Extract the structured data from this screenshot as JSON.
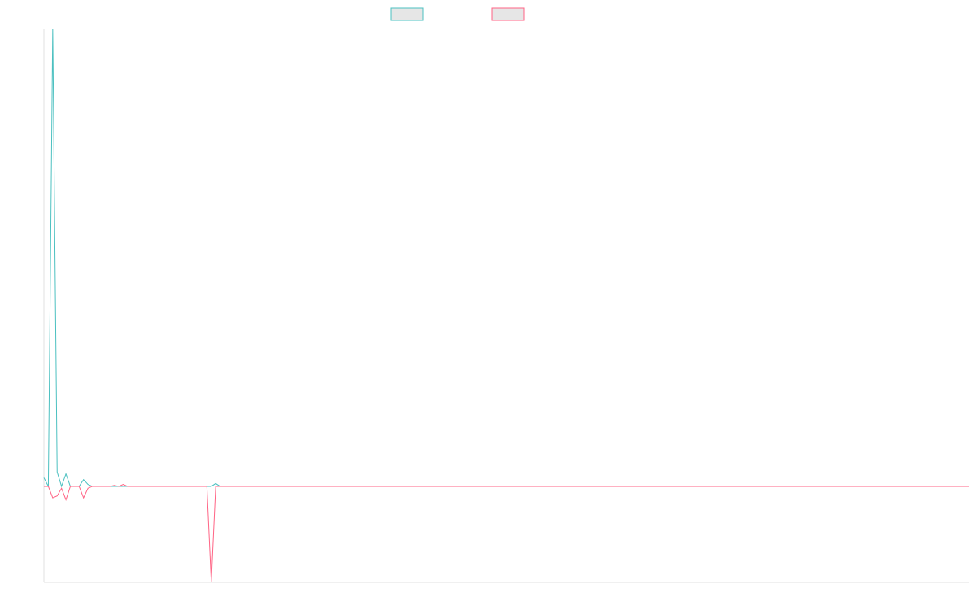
{
  "chart_data": {
    "type": "line",
    "x": [
      0,
      1,
      2,
      3,
      4,
      5,
      6,
      7,
      8,
      9,
      10,
      11,
      15,
      16,
      17,
      18,
      19,
      37,
      38,
      39,
      40,
      210
    ],
    "xlim": [
      0,
      210
    ],
    "ylim": [
      -1,
      4.76
    ],
    "series": [
      {
        "color": "#4bc0c0",
        "values": [
          0.09,
          0,
          4.76,
          0.15,
          0,
          0.13,
          0,
          0,
          0,
          0.07,
          0.02,
          0,
          0,
          0,
          0,
          0,
          0,
          0,
          0,
          0.03,
          0,
          0
        ]
      },
      {
        "color": "#ff6384",
        "values": [
          0,
          0,
          -0.12,
          -0.1,
          -0.02,
          -0.14,
          0,
          0,
          0,
          -0.12,
          -0.02,
          0,
          0,
          0.01,
          0,
          0.02,
          0,
          0,
          -1,
          0,
          0,
          0
        ]
      }
    ]
  }
}
